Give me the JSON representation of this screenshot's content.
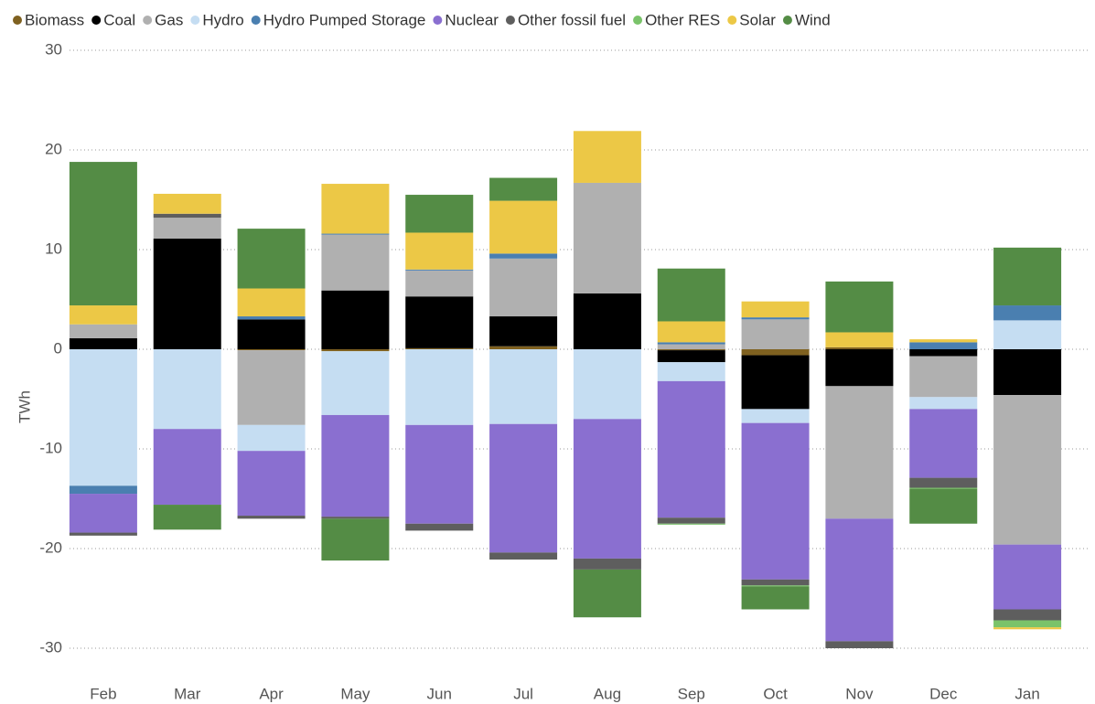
{
  "chart_data": {
    "type": "bar",
    "stacked": true,
    "y_label": "TWh",
    "categories": [
      "Feb",
      "Mar",
      "Apr",
      "May",
      "Jun",
      "Jul",
      "Aug",
      "Sep",
      "Oct",
      "Nov",
      "Dec",
      "Jan"
    ],
    "ylim": [
      -30,
      30
    ],
    "yticks": [
      -30,
      -20,
      -10,
      0,
      10,
      20,
      30
    ],
    "grid": true,
    "legend": "top",
    "series": [
      {
        "name": "Biomass",
        "color": "#7f6120",
        "values": [
          null,
          null,
          -0.1,
          -0.2,
          0.1,
          0.3,
          null,
          -0.1,
          -0.6,
          0.2,
          null,
          null
        ]
      },
      {
        "name": "Coal",
        "color": "#000000",
        "values": [
          1.1,
          11.1,
          3.0,
          5.9,
          5.2,
          3.0,
          5.6,
          -1.2,
          -5.4,
          -3.7,
          -0.7,
          -4.6
        ]
      },
      {
        "name": "Gas",
        "color": "#b0b0b0",
        "values": [
          1.4,
          2.1,
          -7.5,
          5.6,
          2.6,
          5.8,
          11.1,
          0.5,
          3.0,
          -13.3,
          -4.1,
          -15.0
        ]
      },
      {
        "name": "Hydro",
        "color": "#c5ddf2",
        "values": [
          -13.7,
          -8.0,
          -2.6,
          -6.4,
          -7.6,
          -7.5,
          -7.0,
          -1.9,
          -1.4,
          null,
          -1.2,
          2.9
        ]
      },
      {
        "name": "Hydro Pumped Storage",
        "color": "#4a7fb0",
        "values": [
          -0.8,
          null,
          0.3,
          0.1,
          0.1,
          0.5,
          null,
          0.2,
          0.2,
          null,
          0.7,
          1.5
        ]
      },
      {
        "name": "Nuclear",
        "color": "#8a6fd0",
        "values": [
          -3.9,
          -7.6,
          -6.5,
          -10.2,
          -9.9,
          -12.9,
          -14.0,
          -13.7,
          -15.7,
          -12.3,
          -6.9,
          -6.5
        ]
      },
      {
        "name": "Other fossil fuel",
        "color": "#5e5e5e",
        "values": [
          -0.3,
          0.4,
          -0.3,
          -0.2,
          -0.7,
          -0.7,
          -1.1,
          -0.6,
          -0.6,
          -0.7,
          -1.0,
          -1.1
        ]
      },
      {
        "name": "Other RES",
        "color": "#7ac36a",
        "values": [
          null,
          null,
          null,
          null,
          null,
          null,
          null,
          -0.1,
          -0.1,
          null,
          -0.1,
          -0.7
        ]
      },
      {
        "name": "Solar",
        "color": "#ecc846",
        "values": [
          1.9,
          2.0,
          2.8,
          5.0,
          3.7,
          5.3,
          5.2,
          2.1,
          1.6,
          1.5,
          0.3,
          -0.2
        ]
      },
      {
        "name": "Wind",
        "color": "#548c45",
        "values": [
          14.4,
          -2.5,
          6.0,
          -4.2,
          3.8,
          2.3,
          -4.8,
          5.3,
          -2.3,
          5.1,
          -3.5,
          5.8
        ]
      }
    ]
  }
}
